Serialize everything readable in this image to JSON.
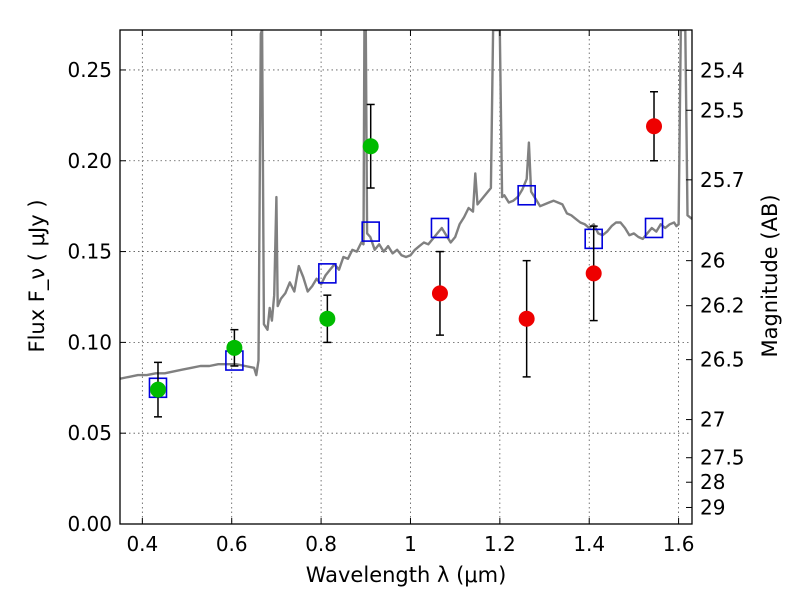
{
  "chart_data": {
    "type": "scatter",
    "title": "",
    "xlabel": "Wavelength  λ (μm)",
    "ylabel": "Flux  F_ν  ( μJy )",
    "ylabel_right": "Magnitude (AB)",
    "xlim": [
      0.35,
      1.63
    ],
    "ylim": [
      0.0,
      0.272
    ],
    "grid": true,
    "x_ticks": [
      0.4,
      0.6,
      0.8,
      1.0,
      1.2,
      1.4,
      1.6
    ],
    "x_tick_labels": [
      "0.4",
      "0.6",
      "0.8",
      "1",
      "1.2",
      "1.4",
      "1.6"
    ],
    "y_ticks": [
      0.0,
      0.05,
      0.1,
      0.15,
      0.2,
      0.25
    ],
    "y_tick_labels": [
      "0.00",
      "0.05",
      "0.10",
      "0.15",
      "0.20",
      "0.25"
    ],
    "right_ticks": [
      {
        "flux": 0.2498,
        "label": "25.4"
      },
      {
        "flux": 0.2278,
        "label": "25.5"
      },
      {
        "flux": 0.1895,
        "label": "25.7"
      },
      {
        "flux": 0.145,
        "label": "26"
      },
      {
        "flux": 0.1202,
        "label": "26.2"
      },
      {
        "flux": 0.0905,
        "label": "26.5"
      },
      {
        "flux": 0.0575,
        "label": "27"
      },
      {
        "flux": 0.0365,
        "label": "27.5"
      },
      {
        "flux": 0.023,
        "label": "28"
      },
      {
        "flux": 0.0091,
        "label": "29"
      }
    ],
    "colors": {
      "spectrum": "#808080",
      "green_points": "#00bb00",
      "red_points": "#ee0000",
      "model_squares": "#0000dd",
      "error_bars": "#000000",
      "grid": "#555555"
    },
    "series": [
      {
        "marker": "circle",
        "color": "#00bb00",
        "points": [
          {
            "x": 0.435,
            "y": 0.074,
            "err": 0.015
          },
          {
            "x": 0.606,
            "y": 0.097,
            "err": 0.01
          },
          {
            "x": 0.814,
            "y": 0.113,
            "err": 0.013
          },
          {
            "x": 0.911,
            "y": 0.208,
            "err": 0.023
          }
        ]
      },
      {
        "marker": "circle",
        "color": "#ee0000",
        "points": [
          {
            "x": 1.066,
            "y": 0.127,
            "err": 0.023
          },
          {
            "x": 1.26,
            "y": 0.113,
            "err": 0.032
          },
          {
            "x": 1.41,
            "y": 0.138,
            "err": 0.026
          },
          {
            "x": 1.545,
            "y": 0.219,
            "err": 0.019
          }
        ]
      },
      {
        "marker": "open-square",
        "color": "#0000dd",
        "points": [
          {
            "x": 0.435,
            "y": 0.075
          },
          {
            "x": 0.606,
            "y": 0.09
          },
          {
            "x": 0.814,
            "y": 0.138
          },
          {
            "x": 0.911,
            "y": 0.161
          },
          {
            "x": 1.066,
            "y": 0.163
          },
          {
            "x": 1.26,
            "y": 0.181
          },
          {
            "x": 1.41,
            "y": 0.157
          },
          {
            "x": 1.545,
            "y": 0.163
          }
        ]
      },
      {
        "marker": "line",
        "color": "#808080",
        "points": [
          [
            0.35,
            0.08
          ],
          [
            0.37,
            0.081
          ],
          [
            0.39,
            0.082
          ],
          [
            0.41,
            0.082
          ],
          [
            0.43,
            0.083
          ],
          [
            0.45,
            0.083
          ],
          [
            0.47,
            0.084
          ],
          [
            0.49,
            0.085
          ],
          [
            0.51,
            0.086
          ],
          [
            0.53,
            0.087
          ],
          [
            0.55,
            0.087
          ],
          [
            0.57,
            0.088
          ],
          [
            0.59,
            0.088
          ],
          [
            0.61,
            0.088
          ],
          [
            0.63,
            0.087
          ],
          [
            0.65,
            0.086
          ],
          [
            0.655,
            0.082
          ],
          [
            0.66,
            0.09
          ],
          [
            0.665,
            0.27
          ],
          [
            0.668,
            0.272
          ],
          [
            0.672,
            0.11
          ],
          [
            0.68,
            0.107
          ],
          [
            0.685,
            0.119
          ],
          [
            0.69,
            0.112
          ],
          [
            0.695,
            0.126
          ],
          [
            0.7,
            0.18
          ],
          [
            0.703,
            0.12
          ],
          [
            0.71,
            0.124
          ],
          [
            0.72,
            0.127
          ],
          [
            0.73,
            0.133
          ],
          [
            0.74,
            0.128
          ],
          [
            0.75,
            0.142
          ],
          [
            0.76,
            0.136
          ],
          [
            0.77,
            0.128
          ],
          [
            0.78,
            0.131
          ],
          [
            0.79,
            0.135
          ],
          [
            0.8,
            0.132
          ],
          [
            0.81,
            0.137
          ],
          [
            0.82,
            0.14
          ],
          [
            0.83,
            0.143
          ],
          [
            0.84,
            0.14
          ],
          [
            0.85,
            0.147
          ],
          [
            0.86,
            0.146
          ],
          [
            0.87,
            0.151
          ],
          [
            0.88,
            0.15
          ],
          [
            0.89,
            0.155
          ],
          [
            0.895,
            0.154
          ],
          [
            0.897,
            0.272
          ],
          [
            0.9,
            0.272
          ],
          [
            0.903,
            0.16
          ],
          [
            0.91,
            0.158
          ],
          [
            0.92,
            0.151
          ],
          [
            0.93,
            0.154
          ],
          [
            0.94,
            0.15
          ],
          [
            0.95,
            0.153
          ],
          [
            0.96,
            0.149
          ],
          [
            0.97,
            0.151
          ],
          [
            0.98,
            0.148
          ],
          [
            0.99,
            0.147
          ],
          [
            1.0,
            0.148
          ],
          [
            1.01,
            0.151
          ],
          [
            1.02,
            0.153
          ],
          [
            1.03,
            0.155
          ],
          [
            1.04,
            0.154
          ],
          [
            1.05,
            0.157
          ],
          [
            1.06,
            0.16
          ],
          [
            1.07,
            0.163
          ],
          [
            1.08,
            0.159
          ],
          [
            1.09,
            0.155
          ],
          [
            1.1,
            0.158
          ],
          [
            1.11,
            0.165
          ],
          [
            1.12,
            0.169
          ],
          [
            1.13,
            0.174
          ],
          [
            1.14,
            0.172
          ],
          [
            1.145,
            0.193
          ],
          [
            1.15,
            0.176
          ],
          [
            1.16,
            0.179
          ],
          [
            1.17,
            0.182
          ],
          [
            1.18,
            0.185
          ],
          [
            1.185,
            0.272
          ],
          [
            1.19,
            0.272
          ],
          [
            1.2,
            0.272
          ],
          [
            1.205,
            0.18
          ],
          [
            1.21,
            0.181
          ],
          [
            1.22,
            0.177
          ],
          [
            1.23,
            0.178
          ],
          [
            1.24,
            0.18
          ],
          [
            1.25,
            0.184
          ],
          [
            1.26,
            0.19
          ],
          [
            1.265,
            0.21
          ],
          [
            1.27,
            0.183
          ],
          [
            1.28,
            0.179
          ],
          [
            1.29,
            0.175
          ],
          [
            1.3,
            0.176
          ],
          [
            1.31,
            0.177
          ],
          [
            1.32,
            0.178
          ],
          [
            1.33,
            0.177
          ],
          [
            1.34,
            0.176
          ],
          [
            1.35,
            0.171
          ],
          [
            1.36,
            0.17
          ],
          [
            1.37,
            0.168
          ],
          [
            1.38,
            0.166
          ],
          [
            1.39,
            0.165
          ],
          [
            1.4,
            0.163
          ],
          [
            1.41,
            0.165
          ],
          [
            1.42,
            0.16
          ],
          [
            1.43,
            0.159
          ],
          [
            1.44,
            0.161
          ],
          [
            1.45,
            0.164
          ],
          [
            1.46,
            0.166
          ],
          [
            1.47,
            0.166
          ],
          [
            1.48,
            0.163
          ],
          [
            1.49,
            0.159
          ],
          [
            1.5,
            0.16
          ],
          [
            1.51,
            0.158
          ],
          [
            1.52,
            0.157
          ],
          [
            1.53,
            0.16
          ],
          [
            1.54,
            0.163
          ],
          [
            1.55,
            0.161
          ],
          [
            1.56,
            0.165
          ],
          [
            1.57,
            0.163
          ],
          [
            1.58,
            0.165
          ],
          [
            1.59,
            0.166
          ],
          [
            1.595,
            0.164
          ],
          [
            1.6,
            0.165
          ],
          [
            1.605,
            0.272
          ],
          [
            1.615,
            0.272
          ],
          [
            1.62,
            0.17
          ],
          [
            1.63,
            0.168
          ]
        ]
      }
    ]
  }
}
